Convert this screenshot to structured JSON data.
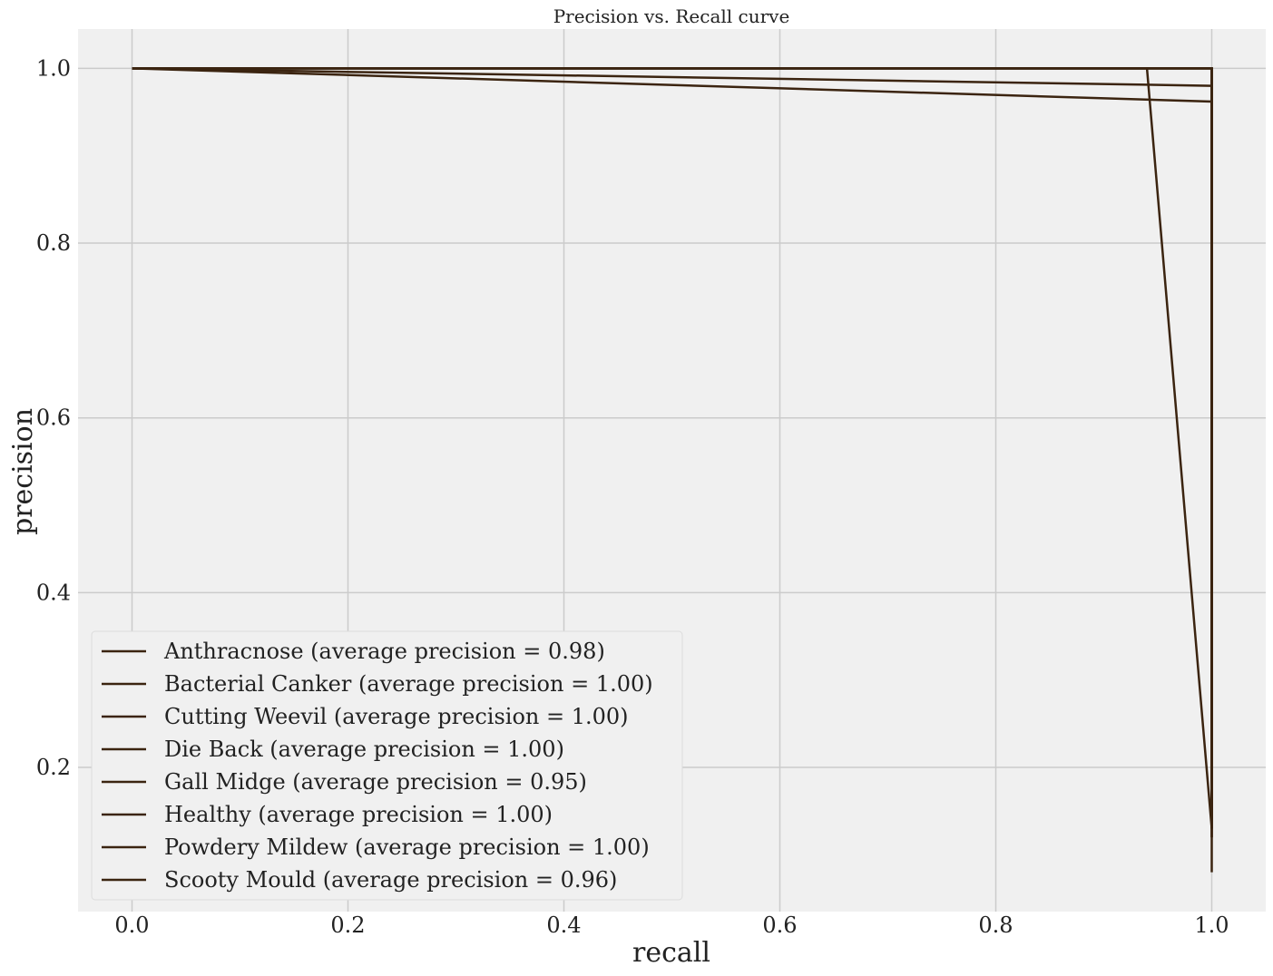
{
  "chart_data": {
    "type": "line",
    "title": "Precision vs. Recall curve",
    "xlabel": "recall",
    "ylabel": "precision",
    "xlim": [
      -0.05,
      1.05
    ],
    "ylim": [
      0.035,
      1.045
    ],
    "xticks": [
      0.0,
      0.2,
      0.4,
      0.6,
      0.8,
      1.0
    ],
    "xtick_labels": [
      "0.0",
      "0.2",
      "0.4",
      "0.6",
      "0.8",
      "1.0"
    ],
    "yticks": [
      0.2,
      0.4,
      0.6,
      0.8,
      1.0
    ],
    "ytick_labels": [
      "0.2",
      "0.4",
      "0.6",
      "0.8",
      "1.0"
    ],
    "grid": true,
    "legend_position": "lower-left",
    "line_color": "#3b2410",
    "plot_background": "#f0f0f0",
    "series": [
      {
        "name": "Anthracnose (average precision = 0.98)",
        "x": [
          0.0,
          1.0,
          1.0
        ],
        "y": [
          1.0,
          0.98,
          0.13
        ]
      },
      {
        "name": "Bacterial Canker (average precision = 1.00)",
        "x": [
          0.0,
          1.0,
          1.0
        ],
        "y": [
          1.0,
          1.0,
          0.14
        ]
      },
      {
        "name": "Cutting Weevil (average precision = 1.00)",
        "x": [
          0.0,
          1.0,
          1.0
        ],
        "y": [
          1.0,
          1.0,
          0.12
        ]
      },
      {
        "name": "Die Back (average precision = 1.00)",
        "x": [
          0.0,
          1.0,
          1.0
        ],
        "y": [
          1.0,
          1.0,
          0.13
        ]
      },
      {
        "name": "Gall Midge (average precision = 0.95)",
        "x": [
          0.0,
          0.94,
          1.0
        ],
        "y": [
          1.0,
          1.0,
          0.13
        ]
      },
      {
        "name": "Healthy (average precision = 1.00)",
        "x": [
          0.0,
          1.0,
          1.0
        ],
        "y": [
          1.0,
          1.0,
          0.08
        ]
      },
      {
        "name": "Powdery Mildew (average precision = 1.00)",
        "x": [
          0.0,
          1.0,
          1.0
        ],
        "y": [
          1.0,
          1.0,
          0.12
        ]
      },
      {
        "name": "Scooty Mould (average precision = 0.96)",
        "x": [
          0.0,
          1.0,
          1.0
        ],
        "y": [
          1.0,
          0.962,
          0.13
        ]
      }
    ]
  }
}
